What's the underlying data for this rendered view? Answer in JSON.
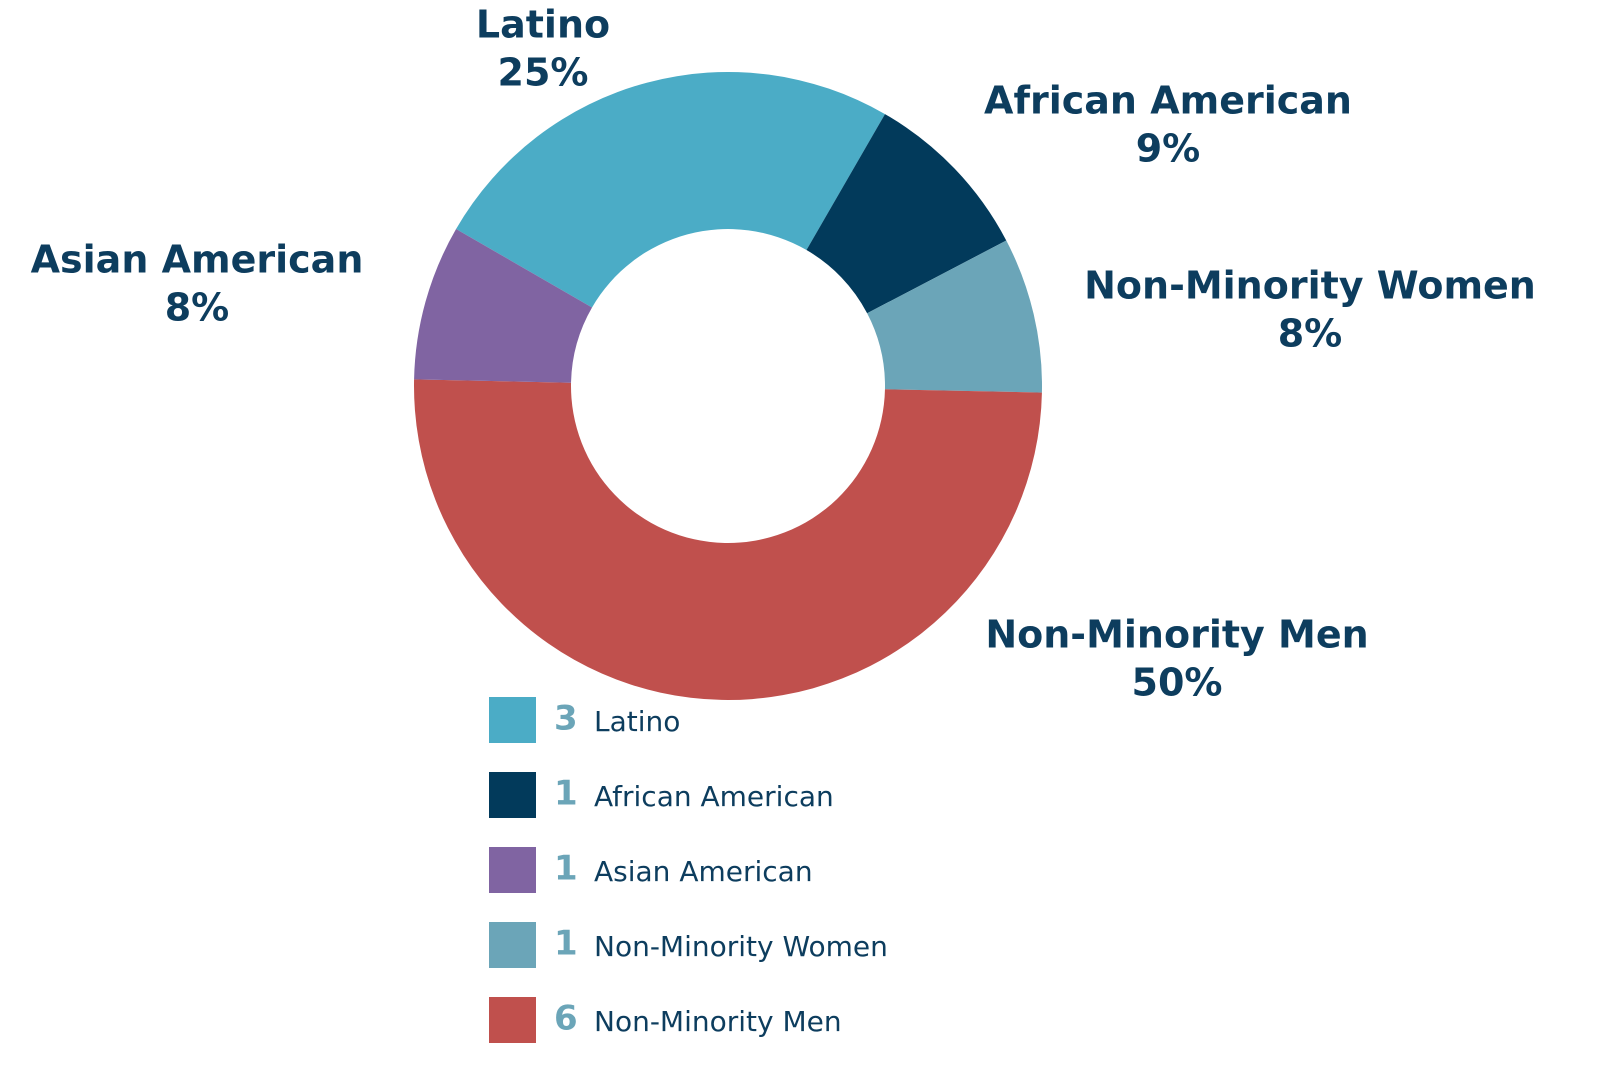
{
  "chart_data": {
    "type": "donut",
    "categories": [
      "Latino",
      "African American",
      "Non-Minority Women",
      "Non-Minority Men",
      "Asian American"
    ],
    "values": [
      25,
      9,
      8,
      50,
      8
    ],
    "value_labels": [
      "25%",
      "9%",
      "8%",
      "50%",
      "8%"
    ],
    "colors": [
      "#4bacc6",
      "#023a5b",
      "#6ba5b8",
      "#c0504d",
      "#8064a2"
    ],
    "start_angle": -60,
    "legend": [
      {
        "count": 3,
        "label": "Latino",
        "color": "#4bacc6"
      },
      {
        "count": 1,
        "label": "African American",
        "color": "#023a5b"
      },
      {
        "count": 1,
        "label": "Asian American",
        "color": "#8064a2"
      },
      {
        "count": 1,
        "label": "Non-Minority Women",
        "color": "#6ba5b8"
      },
      {
        "count": 6,
        "label": "Non-Minority Men",
        "color": "#c0504d"
      }
    ]
  }
}
